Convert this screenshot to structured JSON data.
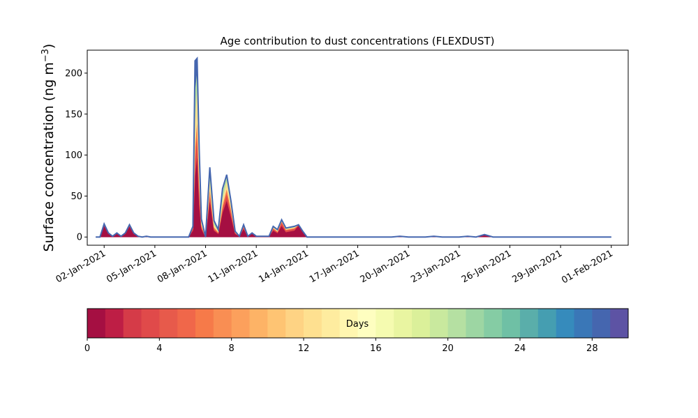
{
  "chart_data": {
    "type": "area",
    "title": "Age contribution to dust concentrations (FLEXDUST)",
    "ylabel": "Surface concentration (ng m",
    "ylabel_unit_exponent": "−3",
    "ylabel_close": ")",
    "ylim": [
      -10,
      228
    ],
    "yticks": [
      0,
      50,
      100,
      150,
      200
    ],
    "xlim": [
      "2021-01-01T00:00",
      "2021-02-02T00:00"
    ],
    "xticks": [
      {
        "date": "2021-01-02",
        "label": "02-Jan-2021"
      },
      {
        "date": "2021-01-05",
        "label": "05-Jan-2021"
      },
      {
        "date": "2021-01-08",
        "label": "08-Jan-2021"
      },
      {
        "date": "2021-01-11",
        "label": "11-Jan-2021"
      },
      {
        "date": "2021-01-14",
        "label": "14-Jan-2021"
      },
      {
        "date": "2021-01-17",
        "label": "17-Jan-2021"
      },
      {
        "date": "2021-01-20",
        "label": "20-Jan-2021"
      },
      {
        "date": "2021-01-23",
        "label": "23-Jan-2021"
      },
      {
        "date": "2021-01-26",
        "label": "26-Jan-2021"
      },
      {
        "date": "2021-01-29",
        "label": "29-Jan-2021"
      },
      {
        "date": "2021-02-01",
        "label": "01-Feb-2021"
      }
    ],
    "grid": false,
    "x": [
      "2021-01-01T12:00",
      "2021-01-01T18:00",
      "2021-01-02T00:00",
      "2021-01-02T06:00",
      "2021-01-02T12:00",
      "2021-01-02T18:00",
      "2021-01-03T00:00",
      "2021-01-03T06:00",
      "2021-01-03T12:00",
      "2021-01-03T18:00",
      "2021-01-04T00:00",
      "2021-01-04T06:00",
      "2021-01-04T12:00",
      "2021-01-04T18:00",
      "2021-01-05T00:00",
      "2021-01-05T12:00",
      "2021-01-06T00:00",
      "2021-01-06T12:00",
      "2021-01-07T00:00",
      "2021-01-07T06:00",
      "2021-01-07T09:00",
      "2021-01-07T12:00",
      "2021-01-07T15:00",
      "2021-01-07T18:00",
      "2021-01-08T00:00",
      "2021-01-08T06:00",
      "2021-01-08T12:00",
      "2021-01-08T18:00",
      "2021-01-09T00:00",
      "2021-01-09T06:00",
      "2021-01-09T12:00",
      "2021-01-09T18:00",
      "2021-01-10T00:00",
      "2021-01-10T06:00",
      "2021-01-10T12:00",
      "2021-01-10T18:00",
      "2021-01-11T00:00",
      "2021-01-11T06:00",
      "2021-01-11T12:00",
      "2021-01-11T18:00",
      "2021-01-12T00:00",
      "2021-01-12T06:00",
      "2021-01-12T12:00",
      "2021-01-12T18:00",
      "2021-01-13T00:00",
      "2021-01-13T06:00",
      "2021-01-13T12:00",
      "2021-01-13T18:00",
      "2021-01-14T00:00",
      "2021-01-15T00:00",
      "2021-01-17T00:00",
      "2021-01-19T00:00",
      "2021-01-19T12:00",
      "2021-01-20T00:00",
      "2021-01-21T00:00",
      "2021-01-21T12:00",
      "2021-01-22T00:00",
      "2021-01-22T12:00",
      "2021-01-23T00:00",
      "2021-01-23T12:00",
      "2021-01-24T00:00",
      "2021-01-24T12:00",
      "2021-01-25T00:00",
      "2021-01-26T00:00",
      "2021-01-28T00:00",
      "2021-01-31T00:00",
      "2021-02-01T00:00"
    ],
    "series": [
      {
        "age_days": 0,
        "values": [
          0,
          0,
          14,
          4,
          1,
          4,
          1,
          4,
          13,
          4,
          1,
          0,
          1,
          0,
          0,
          0,
          0,
          0,
          0,
          8,
          75,
          100,
          40,
          10,
          0,
          45,
          8,
          4,
          30,
          45,
          25,
          4,
          1,
          10,
          1,
          4,
          1,
          1,
          1,
          1,
          8,
          5,
          14,
          6,
          7,
          8,
          14,
          6,
          0,
          0,
          0,
          0,
          1,
          0,
          0,
          1,
          0,
          0,
          0,
          1,
          0,
          3,
          0,
          0,
          0,
          0,
          0
        ]
      },
      {
        "age_days": 3,
        "values": [
          0,
          0,
          2,
          1,
          0,
          1,
          0,
          1,
          2,
          1,
          0,
          0,
          0,
          0,
          0,
          0,
          0,
          0,
          0,
          2,
          20,
          25,
          15,
          3,
          0,
          8,
          2,
          1,
          5,
          8,
          5,
          1,
          0,
          2,
          0,
          1,
          0,
          0,
          0,
          0,
          2,
          1,
          4,
          2,
          2,
          2,
          1,
          1,
          0,
          0,
          0,
          0,
          0,
          0,
          0,
          0,
          0,
          0,
          0,
          0,
          0,
          0,
          0,
          0,
          0,
          0,
          0
        ]
      },
      {
        "age_days": 6,
        "values": [
          0,
          0,
          0,
          0,
          0,
          0,
          0,
          0,
          0,
          0,
          0,
          0,
          0,
          0,
          0,
          0,
          0,
          0,
          0,
          1,
          15,
          18,
          10,
          2,
          0,
          6,
          2,
          1,
          4,
          6,
          4,
          1,
          0,
          1,
          0,
          0,
          0,
          0,
          0,
          0,
          1,
          1,
          1,
          1,
          1,
          1,
          0,
          0,
          0,
          0,
          0,
          0,
          0,
          0,
          0,
          0,
          0,
          0,
          0,
          0,
          0,
          0,
          0,
          0,
          0,
          0,
          0
        ]
      },
      {
        "age_days": 12,
        "values": [
          0,
          0,
          0,
          0,
          0,
          0,
          0,
          0,
          0,
          0,
          0,
          0,
          0,
          0,
          0,
          0,
          0,
          0,
          0,
          1,
          35,
          40,
          20,
          3,
          0,
          12,
          3,
          2,
          8,
          10,
          6,
          1,
          0,
          1,
          0,
          0,
          0,
          0,
          0,
          0,
          1,
          1,
          1,
          1,
          1,
          1,
          0,
          0,
          0,
          0,
          0,
          0,
          0,
          0,
          0,
          0,
          0,
          0,
          0,
          0,
          0,
          0,
          0,
          0,
          0,
          0,
          0
        ]
      },
      {
        "age_days": 20,
        "values": [
          0,
          0,
          0,
          0,
          0,
          0,
          0,
          0,
          0,
          0,
          0,
          0,
          0,
          0,
          0,
          0,
          0,
          0,
          0,
          1,
          35,
          20,
          12,
          2,
          0,
          12,
          4,
          1,
          10,
          6,
          3,
          0,
          0,
          1,
          0,
          0,
          0,
          0,
          0,
          0,
          1,
          1,
          1,
          1,
          1,
          1,
          0,
          0,
          0,
          0,
          0,
          0,
          0,
          0,
          0,
          0,
          0,
          0,
          0,
          0,
          0,
          0,
          0,
          0,
          0,
          0,
          0
        ]
      },
      {
        "age_days": 28,
        "values": [
          0,
          0,
          0,
          0,
          0,
          0,
          0,
          0,
          0,
          0,
          0,
          0,
          0,
          0,
          0,
          0,
          0,
          0,
          0,
          0,
          35,
          15,
          10,
          2,
          0,
          2,
          1,
          0,
          2,
          1,
          1,
          0,
          0,
          0,
          0,
          0,
          0,
          0,
          0,
          0,
          0,
          0,
          0,
          0,
          0,
          0,
          0,
          0,
          0,
          0,
          0,
          0,
          0,
          0,
          0,
          0,
          0,
          0,
          0,
          0,
          0,
          0,
          0,
          0,
          0,
          0,
          0
        ]
      }
    ],
    "colorbar": {
      "label": "Days",
      "range": [
        0,
        30
      ],
      "ticks": [
        0,
        4,
        8,
        12,
        16,
        20,
        24,
        28
      ],
      "colors": [
        "#a50f42",
        "#be1e45",
        "#d53b48",
        "#e04a4a",
        "#e75a4b",
        "#f0674a",
        "#f67a49",
        "#f98e53",
        "#fca05c",
        "#fdb366",
        "#fec473",
        "#fed384",
        "#fee090",
        "#feec9f",
        "#fff6b0",
        "#fefec0",
        "#f5fbb0",
        "#e9f5a1",
        "#dbf09a",
        "#c9e99e",
        "#b5e0a2",
        "#9dd6a3",
        "#85cca4",
        "#6fc0a5",
        "#5aaeaa",
        "#459eb1",
        "#368bbc",
        "#3a77b7",
        "#4566af",
        "#5d53a4"
      ]
    }
  }
}
